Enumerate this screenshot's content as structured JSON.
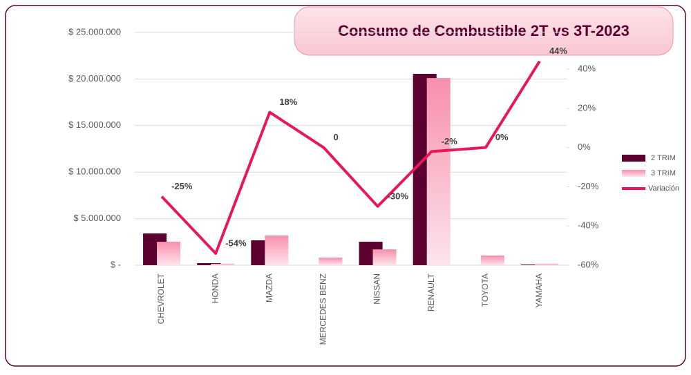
{
  "chart_data": {
    "type": "bar",
    "title": "Consumo de Combustible 2T vs 3T-2023",
    "categories": [
      "CHEVROLET",
      "HONDA",
      "MAZDA",
      "MERCEDES BENZ",
      "NISSAN",
      "RENAULT",
      "TOYOTA",
      "YAMAHA"
    ],
    "series": [
      {
        "name": "2 TRIM",
        "color": "#5c0030",
        "values": [
          3410000,
          220000,
          2670000,
          0,
          2520000,
          20550000,
          0,
          70000
        ]
      },
      {
        "name": "3 TRIM",
        "color": "#f78fab",
        "values": [
          2520000,
          150000,
          3190000,
          820000,
          1700000,
          20100000,
          1040000,
          150000
        ]
      },
      {
        "name": "Variación",
        "color": "#e8175d",
        "type": "line",
        "axis": "y2",
        "values": [
          -25,
          -54,
          18,
          0,
          -30,
          -2,
          0,
          44
        ],
        "value_labels": [
          "-25%",
          "-54%",
          "18%",
          "0",
          "-30%",
          "-2%",
          "0%",
          "44%"
        ]
      }
    ],
    "ylim": [
      0,
      25000000
    ],
    "yticks": [
      {
        "value": 0,
        "label": "$ -"
      },
      {
        "value": 5000000,
        "label": "$ 5.000.000"
      },
      {
        "value": 10000000,
        "label": "$ 10.000.000"
      },
      {
        "value": 15000000,
        "label": "$ 15.000.000"
      },
      {
        "value": 20000000,
        "label": "$ 20.000.000"
      },
      {
        "value": 25000000,
        "label": "$ 25.000.000"
      }
    ],
    "y2lim": [
      -60,
      58.7
    ],
    "y2ticks": [
      {
        "value": -60,
        "label": "-60%"
      },
      {
        "value": -40,
        "label": "-40%"
      },
      {
        "value": -20,
        "label": "-20%"
      },
      {
        "value": 0,
        "label": "0%"
      },
      {
        "value": 20,
        "label": "20%"
      },
      {
        "value": 40,
        "label": "40%"
      }
    ],
    "grid": true,
    "legend": "right"
  }
}
